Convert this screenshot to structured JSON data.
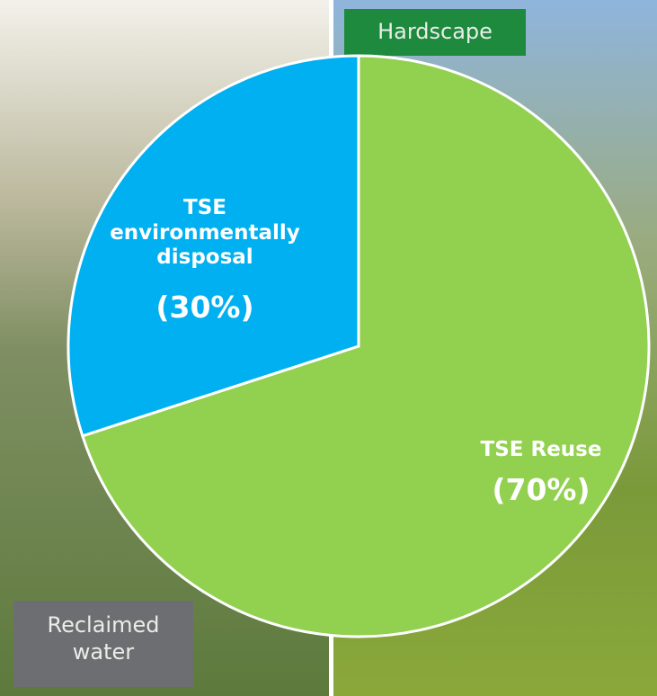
{
  "chart_data": {
    "type": "pie",
    "categories": [
      "TSE Reuse",
      "TSE environmentally disposal"
    ],
    "values": [
      70,
      30
    ],
    "value_labels": [
      "(70%)",
      "(30%)"
    ],
    "colors": [
      "#92d050",
      "#00b0f0"
    ],
    "annotations": [
      "Hardscape",
      "Reclaimed water"
    ]
  }
}
